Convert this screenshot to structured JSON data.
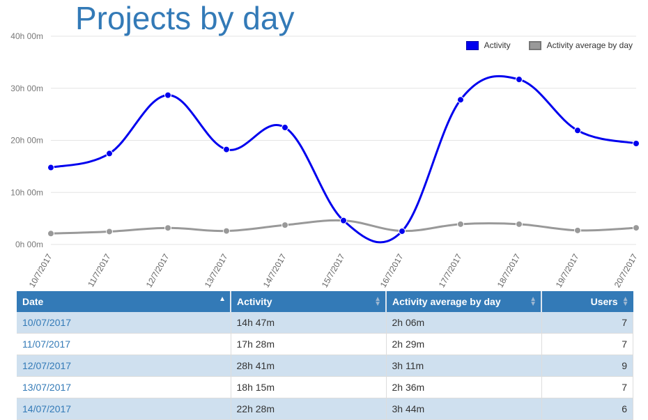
{
  "header": {
    "title": "Projects by day"
  },
  "legend": [
    {
      "label": "Activity",
      "color": "#0000ee"
    },
    {
      "label": "Activity average by day",
      "color": "#999999"
    }
  ],
  "chart_data": {
    "type": "line",
    "title": "Projects by day",
    "xlabel": "",
    "ylabel": "",
    "x": [
      "10/7/2017",
      "11/7/2017",
      "12/7/2017",
      "13/7/2017",
      "14/7/2017",
      "15/7/2017",
      "16/7/2017",
      "17/7/2017",
      "18/7/2017",
      "19/7/2017",
      "20/7/2017"
    ],
    "y_ticks": [
      "0h 00m",
      "10h 00m",
      "20h 00m",
      "30h 00m",
      "40h 00m"
    ],
    "y_tick_values": [
      0,
      10,
      20,
      30,
      40
    ],
    "ylim": [
      0,
      40
    ],
    "y_unit": "hours",
    "grid": true,
    "legend_position": "top-right",
    "series": [
      {
        "name": "Activity",
        "color": "#0000ee",
        "values": [
          14.78,
          17.47,
          28.68,
          18.25,
          22.47,
          4.6,
          2.55,
          27.8,
          31.7,
          21.9,
          19.4
        ]
      },
      {
        "name": "Activity average by day",
        "color": "#999999",
        "values": [
          2.1,
          2.48,
          3.18,
          2.6,
          3.73,
          4.6,
          2.6,
          3.9,
          3.9,
          2.7,
          3.2
        ]
      }
    ]
  },
  "table": {
    "columns": [
      {
        "label": "Date",
        "sort": "asc"
      },
      {
        "label": "Activity",
        "sort": "none"
      },
      {
        "label": "Activity average by day",
        "sort": "none"
      },
      {
        "label": "Users",
        "sort": "none"
      }
    ],
    "rows": [
      [
        "10/07/2017",
        "14h 47m",
        "2h 06m",
        "7"
      ],
      [
        "11/07/2017",
        "17h 28m",
        "2h 29m",
        "7"
      ],
      [
        "12/07/2017",
        "28h 41m",
        "3h 11m",
        "9"
      ],
      [
        "13/07/2017",
        "18h 15m",
        "2h 36m",
        "7"
      ],
      [
        "14/07/2017",
        "22h 28m",
        "3h 44m",
        "6"
      ]
    ]
  }
}
